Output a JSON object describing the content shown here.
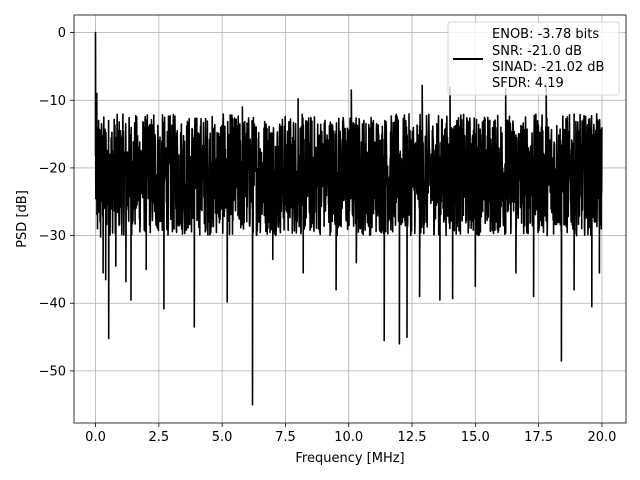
{
  "chart_data": {
    "type": "line",
    "xlabel": "Frequency [MHz]",
    "ylabel": "PSD [dB]",
    "xlim": [
      -0.85,
      20.95
    ],
    "ylim": [
      -57.7,
      2.6
    ],
    "xticks": [
      0.0,
      2.5,
      5.0,
      7.5,
      10.0,
      12.5,
      15.0,
      17.5,
      20.0
    ],
    "xtick_labels": [
      "0.0",
      "2.5",
      "5.0",
      "7.5",
      "10.0",
      "12.5",
      "15.0",
      "17.5",
      "20.0"
    ],
    "yticks": [
      0,
      -10,
      -20,
      -30,
      -40,
      -50
    ],
    "ytick_labels": [
      "0",
      "−10",
      "−20",
      "−30",
      "−40",
      "−50"
    ],
    "grid": true,
    "legend_position": "top-right",
    "legend_lines": [
      "ENOB: -3.78 bits",
      "SNR: -21.0 dB",
      "SINAD: -21.02 dB",
      "SFDR: 4.19"
    ],
    "series": [
      {
        "color": "#000000",
        "x_range": [
          0.0,
          20.0
        ],
        "noise_floor_min": -30,
        "noise_floor_max": -12,
        "peaks": [
          {
            "x": 0.0,
            "y": 0.0
          },
          {
            "x": 0.05,
            "y": -9.0
          },
          {
            "x": 0.08,
            "y": -29.0
          },
          {
            "x": 0.12,
            "y": -13.0
          },
          {
            "x": 0.2,
            "y": -30.2
          },
          {
            "x": 0.3,
            "y": -35.5
          },
          {
            "x": 0.4,
            "y": -36.5
          },
          {
            "x": 0.52,
            "y": -45.2
          },
          {
            "x": 0.8,
            "y": -34.5
          },
          {
            "x": 1.2,
            "y": -36.8
          },
          {
            "x": 1.4,
            "y": -39.5
          },
          {
            "x": 2.0,
            "y": -35.0
          },
          {
            "x": 2.7,
            "y": -40.8
          },
          {
            "x": 3.9,
            "y": -43.5
          },
          {
            "x": 5.2,
            "y": -39.8
          },
          {
            "x": 6.2,
            "y": -55.0
          },
          {
            "x": 7.0,
            "y": -33.5
          },
          {
            "x": 8.2,
            "y": -35.5
          },
          {
            "x": 9.5,
            "y": -38.0
          },
          {
            "x": 10.3,
            "y": -34.0
          },
          {
            "x": 11.4,
            "y": -45.5
          },
          {
            "x": 12.0,
            "y": -46.0
          },
          {
            "x": 12.3,
            "y": -45.0
          },
          {
            "x": 12.8,
            "y": -39.0
          },
          {
            "x": 13.6,
            "y": -39.5
          },
          {
            "x": 14.1,
            "y": -39.3
          },
          {
            "x": 15.0,
            "y": -37.5
          },
          {
            "x": 16.6,
            "y": -35.5
          },
          {
            "x": 17.3,
            "y": -39.0
          },
          {
            "x": 18.4,
            "y": -48.5
          },
          {
            "x": 18.9,
            "y": -38.0
          },
          {
            "x": 19.6,
            "y": -40.5
          },
          {
            "x": 19.9,
            "y": -35.5
          },
          {
            "x": 2.3,
            "y": -12.2
          },
          {
            "x": 5.8,
            "y": -11.0
          },
          {
            "x": 8.0,
            "y": -9.8
          },
          {
            "x": 10.1,
            "y": -8.5
          },
          {
            "x": 12.9,
            "y": -7.8
          },
          {
            "x": 14.0,
            "y": -8.1
          },
          {
            "x": 16.2,
            "y": -8.3
          },
          {
            "x": 17.8,
            "y": -7.6
          }
        ]
      }
    ]
  }
}
